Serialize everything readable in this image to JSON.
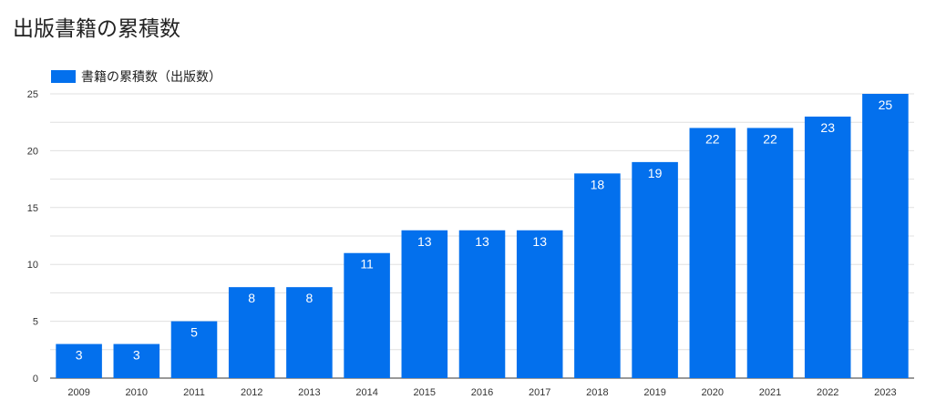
{
  "chart_data": {
    "type": "bar",
    "title": "出版書籍の累積数",
    "xlabel": "",
    "ylabel": "",
    "categories": [
      "2009",
      "2010",
      "2011",
      "2012",
      "2013",
      "2014",
      "2015",
      "2016",
      "2017",
      "2018",
      "2019",
      "2020",
      "2021",
      "2022",
      "2023"
    ],
    "series": [
      {
        "name": "書籍の累積数（出版数）",
        "values": [
          3,
          3,
          5,
          8,
          8,
          11,
          13,
          13,
          13,
          18,
          19,
          22,
          22,
          23,
          25
        ]
      }
    ],
    "ylim": [
      0,
      25
    ],
    "yticks": [
      "0",
      "5",
      "10",
      "15",
      "20",
      "25"
    ],
    "grid": true,
    "legend_position": "top-left",
    "bar_color": "#0370ed"
  }
}
